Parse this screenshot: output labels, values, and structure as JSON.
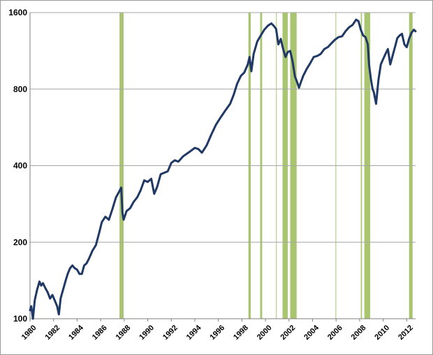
{
  "chart_data": {
    "type": "line",
    "title": "",
    "xlabel": "",
    "ylabel": "",
    "y_scale": "log2",
    "ylim": [
      100,
      1600
    ],
    "xlim": [
      1980,
      2012.75
    ],
    "grid": {
      "horizontal": true,
      "vertical": false
    },
    "legend": "none",
    "y_ticks": [
      "100",
      "200",
      "400",
      "800",
      "1600"
    ],
    "x_ticks": [
      "1980",
      "1982",
      "1984",
      "1986",
      "1988",
      "1990",
      "1992",
      "1994",
      "1996",
      "1998",
      "2000",
      "2002",
      "2004",
      "2006",
      "2008",
      "2010",
      "2012"
    ],
    "colors": {
      "line": "#1f3864",
      "band": "#9bbb59",
      "grid": "#a6a6a6",
      "axis": "#7f7f7f"
    },
    "highlight_periods": [
      [
        1987.6,
        1987.95
      ],
      [
        1998.55,
        1998.75
      ],
      [
        1999.55,
        1999.72
      ],
      [
        2000.9,
        2000.95
      ],
      [
        2001.45,
        2001.9
      ],
      [
        2002.1,
        2002.65
      ],
      [
        2005.95,
        2006.0
      ],
      [
        2008.1,
        2008.2
      ],
      [
        2008.4,
        2008.9
      ],
      [
        2012.2,
        2012.5
      ]
    ],
    "series": [
      {
        "x": [
          1980.0,
          1980.1,
          1980.25,
          1980.4,
          1980.6,
          1980.8,
          1980.95,
          1981.1,
          1981.3,
          1981.5,
          1981.7,
          1981.9,
          1982.1,
          1982.3,
          1982.45,
          1982.6,
          1982.7,
          1982.85,
          1983.0,
          1983.2,
          1983.4,
          1983.6,
          1983.8,
          1984.0,
          1984.2,
          1984.4,
          1984.6,
          1984.8,
          1985.0,
          1985.3,
          1985.6,
          1985.9,
          1986.1,
          1986.4,
          1986.7,
          1987.0,
          1987.3,
          1987.6,
          1987.75,
          1987.85,
          1987.95,
          1988.2,
          1988.5,
          1988.8,
          1989.1,
          1989.4,
          1989.7,
          1990.0,
          1990.3,
          1990.55,
          1990.8,
          1991.1,
          1991.4,
          1991.7,
          1992.0,
          1992.3,
          1992.6,
          1993.0,
          1993.3,
          1993.6,
          1994.0,
          1994.3,
          1994.6,
          1995.0,
          1995.4,
          1995.8,
          1996.2,
          1996.6,
          1997.0,
          1997.3,
          1997.6,
          1997.9,
          1998.2,
          1998.5,
          1998.65,
          1998.8,
          1999.0,
          1999.3,
          1999.6,
          1999.9,
          2000.2,
          2000.5,
          2000.7,
          2000.9,
          2001.1,
          2001.3,
          2001.5,
          2001.7,
          2001.9,
          2002.1,
          2002.3,
          2002.5,
          2002.7,
          2002.85,
          2003.0,
          2003.2,
          2003.5,
          2003.8,
          2004.1,
          2004.4,
          2004.7,
          2005.0,
          2005.3,
          2005.6,
          2005.9,
          2006.2,
          2006.5,
          2006.8,
          2007.1,
          2007.4,
          2007.7,
          2007.9,
          2008.1,
          2008.3,
          2008.5,
          2008.7,
          2008.8,
          2008.95,
          2009.1,
          2009.2,
          2009.4,
          2009.6,
          2009.8,
          2010.0,
          2010.2,
          2010.4,
          2010.6,
          2010.8,
          2011.0,
          2011.2,
          2011.4,
          2011.6,
          2011.8,
          2012.0,
          2012.2,
          2012.4,
          2012.6,
          2012.75
        ],
        "values": [
          108,
          112,
          100,
          118,
          130,
          140,
          135,
          138,
          132,
          127,
          120,
          124,
          118,
          112,
          104,
          120,
          125,
          132,
          140,
          150,
          158,
          162,
          158,
          156,
          150,
          150,
          162,
          165,
          172,
          185,
          195,
          220,
          240,
          252,
          245,
          270,
          300,
          318,
          328,
          262,
          245,
          265,
          272,
          288,
          300,
          320,
          350,
          345,
          355,
          310,
          330,
          370,
          375,
          380,
          410,
          420,
          415,
          435,
          445,
          455,
          470,
          465,
          450,
          480,
          530,
          580,
          620,
          660,
          700,
          760,
          840,
          900,
          930,
          1000,
          1070,
          940,
          1100,
          1230,
          1300,
          1370,
          1420,
          1450,
          1420,
          1380,
          1200,
          1260,
          1150,
          1070,
          1120,
          1130,
          1030,
          900,
          850,
          810,
          850,
          900,
          960,
          1010,
          1070,
          1080,
          1100,
          1150,
          1170,
          1210,
          1250,
          1280,
          1290,
          1350,
          1400,
          1430,
          1500,
          1480,
          1370,
          1300,
          1280,
          1200,
          1000,
          880,
          800,
          780,
          700,
          870,
          1000,
          1050,
          1100,
          1150,
          1000,
          1080,
          1170,
          1270,
          1300,
          1320,
          1200,
          1170,
          1260,
          1330,
          1370,
          1350
        ]
      }
    ]
  }
}
